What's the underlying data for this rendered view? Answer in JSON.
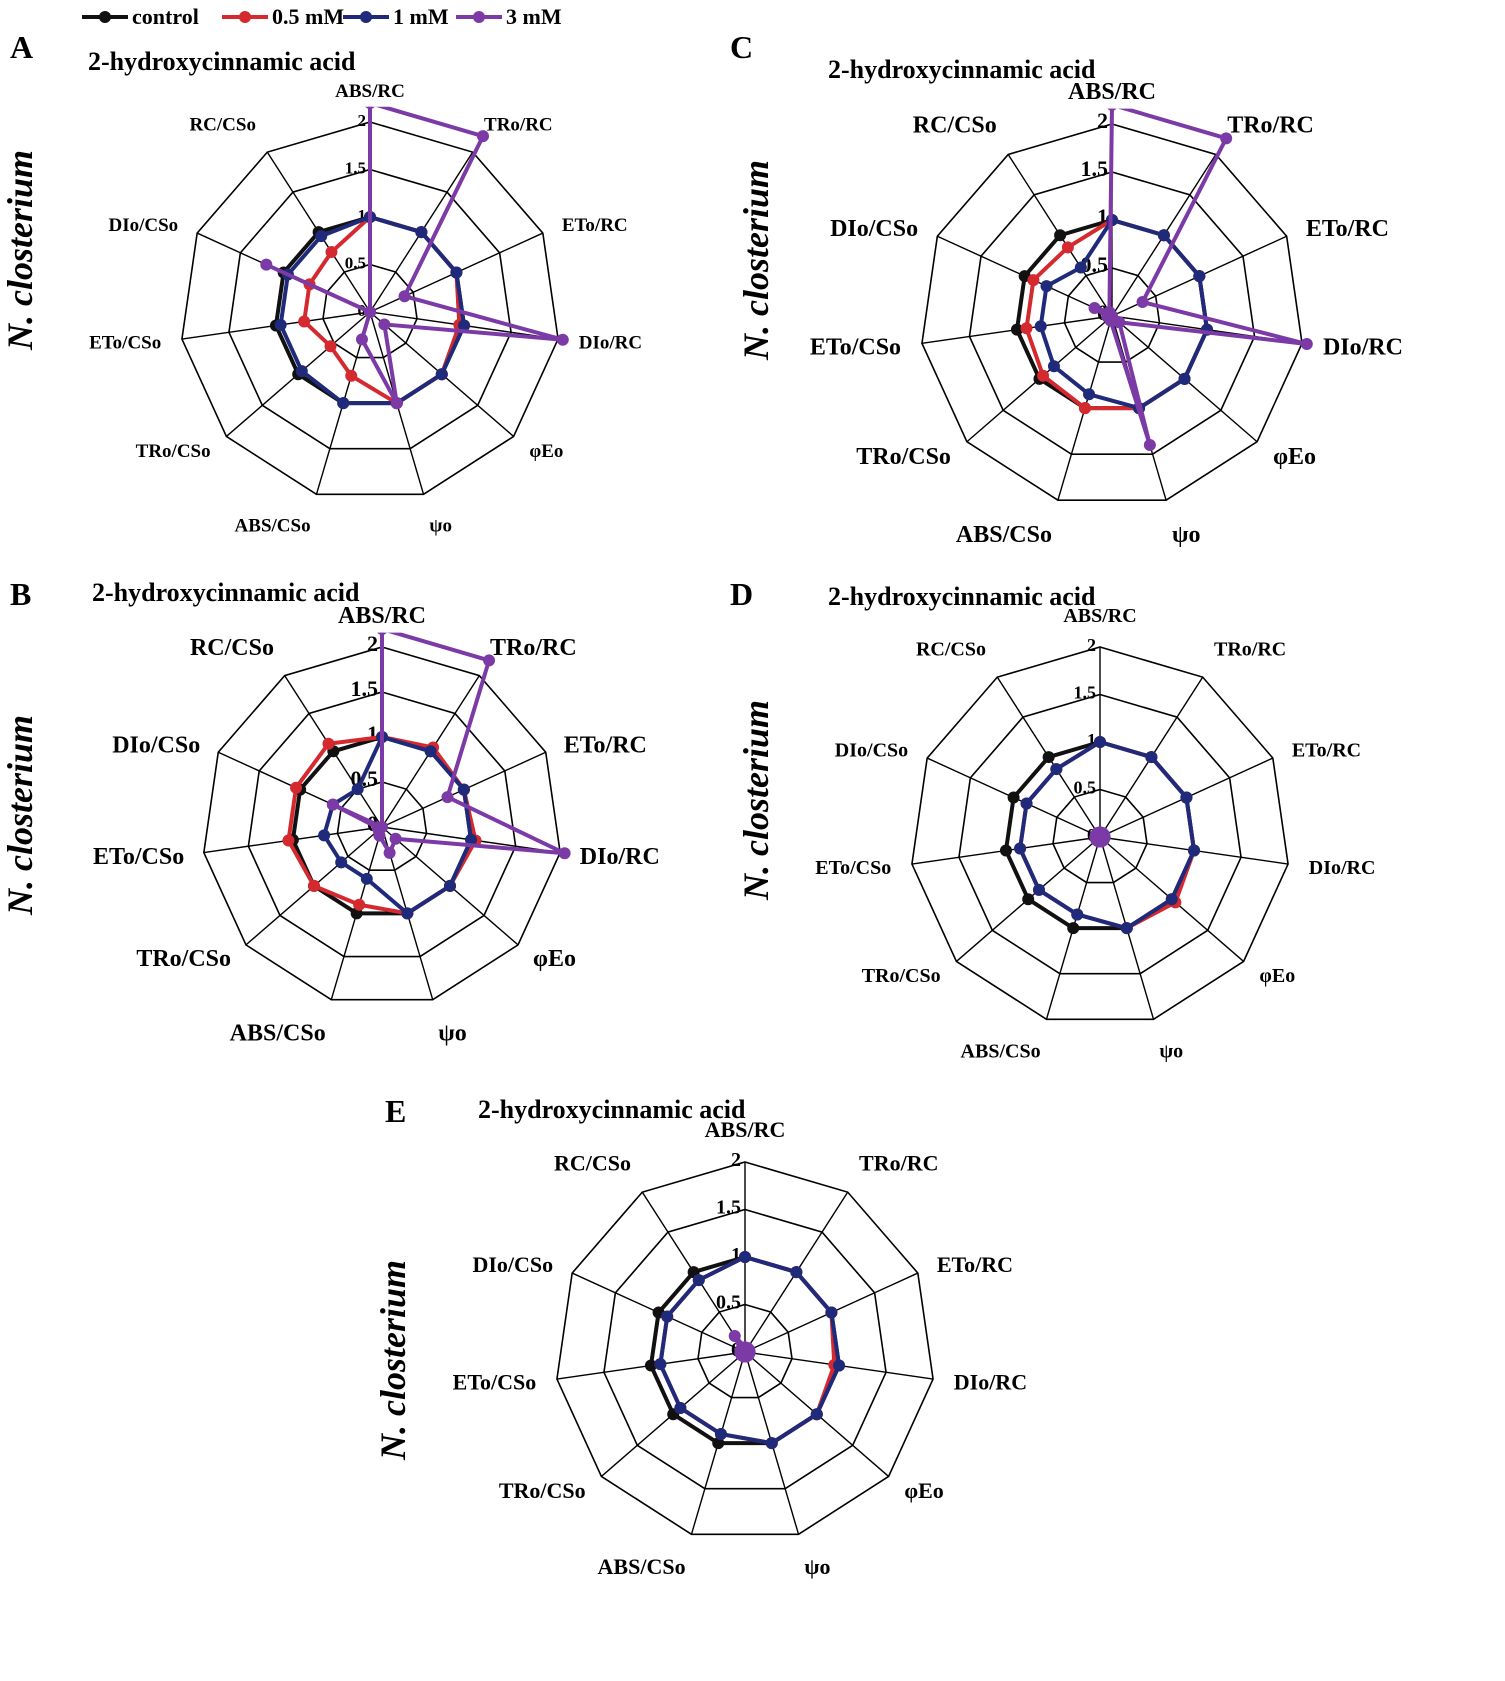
{
  "legend": [
    {
      "name": "control",
      "color": "#111111"
    },
    {
      "name": "0.5 mM",
      "color": "#d42a2f"
    },
    {
      "name": "1 mM",
      "color": "#1f2a7a"
    },
    {
      "name": "3 mM",
      "color": "#7b3aa6"
    }
  ],
  "chart_data": [
    {
      "type": "radar",
      "panel": "A",
      "title": "2-hydroxycinnamic acid",
      "ylabel": "N. closterium",
      "axes": [
        "ABS/RC",
        "TRo/RC",
        "ETo/RC",
        "DIo/RC",
        "φEo",
        "ψo",
        "ABS/CSo",
        "TRo/CSo",
        "ETo/CSo",
        "DIo/CSo",
        "RC/CSo"
      ],
      "ticks": [
        "0",
        "0.5",
        "1",
        "1.5",
        "2"
      ],
      "rmax": 2,
      "series": [
        {
          "name": "control",
          "values": [
            1,
            1,
            1,
            1,
            1,
            1,
            1,
            1,
            1,
            1,
            1
          ]
        },
        {
          "name": "0.5 mM",
          "values": [
            1,
            1,
            1,
            0.95,
            1,
            1,
            0.7,
            0.55,
            0.7,
            0.7,
            0.75
          ]
        },
        {
          "name": "1 mM",
          "values": [
            1,
            1,
            1,
            1,
            1,
            1,
            1,
            0.95,
            0.95,
            0.95,
            0.95
          ]
        },
        {
          "name": "3 mM",
          "values": [
            2.2,
            2.2,
            0.4,
            2.05,
            0.2,
            1,
            0.3,
            0,
            0,
            1.2,
            0
          ]
        }
      ]
    },
    {
      "type": "radar",
      "panel": "B",
      "title": "2-hydroxycinnamic acid",
      "ylabel": "N. closterium",
      "axes": [
        "ABS/RC",
        "TRo/RC",
        "ETo/RC",
        "DIo/RC",
        "φEo",
        "ψo",
        "ABS/CSo",
        "TRo/CSo",
        "ETo/CSo",
        "DIo/CSo",
        "RC/CSo"
      ],
      "ticks": [
        "0",
        "0.5",
        "1",
        "1.5",
        "2"
      ],
      "rmax": 2,
      "series": [
        {
          "name": "control",
          "values": [
            1,
            1,
            1,
            1,
            1,
            1,
            1,
            1,
            1,
            1,
            1
          ]
        },
        {
          "name": "0.5 mM",
          "values": [
            1,
            1.05,
            1,
            1.05,
            1,
            1,
            0.9,
            1,
            1.05,
            1.05,
            1.1
          ]
        },
        {
          "name": "1 mM",
          "values": [
            1,
            1,
            1,
            1,
            1,
            1,
            0.6,
            0.6,
            0.65,
            0.6,
            0.5
          ]
        },
        {
          "name": "3 mM",
          "values": [
            2.2,
            2.2,
            0.8,
            2.05,
            0.2,
            0.3,
            0.1,
            0.05,
            0.05,
            0.6,
            0
          ]
        }
      ]
    },
    {
      "type": "radar",
      "panel": "C",
      "title": "2-hydroxycinnamic acid",
      "ylabel": "N. closterium",
      "axes": [
        "ABS/RC",
        "TRo/RC",
        "ETo/RC",
        "DIo/RC",
        "φEo",
        "ψo",
        "ABS/CSo",
        "TRo/CSo",
        "ETo/CSo",
        "DIo/CSo",
        "RC/CSo"
      ],
      "ticks": [
        "0",
        "0.5",
        "1",
        "1.5",
        "2"
      ],
      "rmax": 2,
      "series": [
        {
          "name": "control",
          "values": [
            1,
            1,
            1,
            1,
            1,
            1,
            1,
            1,
            1,
            1,
            1
          ]
        },
        {
          "name": "0.5 mM",
          "values": [
            1,
            1,
            1,
            1,
            1,
            1,
            1,
            0.95,
            0.9,
            0.9,
            0.85
          ]
        },
        {
          "name": "1 mM",
          "values": [
            1,
            1,
            1,
            1,
            1,
            1,
            0.85,
            0.8,
            0.75,
            0.75,
            0.6
          ]
        },
        {
          "name": "3 mM",
          "values": [
            2.2,
            2.2,
            0.35,
            2.05,
            0.1,
            1.4,
            0.05,
            0,
            0.05,
            0.2,
            0.05
          ]
        }
      ]
    },
    {
      "type": "radar",
      "panel": "D",
      "title": "2-hydroxycinnamic acid",
      "ylabel": "N. closterium",
      "axes": [
        "ABS/RC",
        "TRo/RC",
        "ETo/RC",
        "DIo/RC",
        "φEo",
        "ψo",
        "ABS/CSo",
        "TRo/CSo",
        "ETo/CSo",
        "DIo/CSo",
        "RC/CSo"
      ],
      "ticks": [
        "0",
        "0.5",
        "1",
        "1.5",
        "2"
      ],
      "rmax": 2,
      "series": [
        {
          "name": "control",
          "values": [
            1,
            1,
            1,
            1,
            1,
            1,
            1,
            1,
            1,
            1,
            1
          ]
        },
        {
          "name": "0.5 mM",
          "values": [
            1,
            1,
            1,
            1,
            1.05,
            1,
            0.85,
            0.85,
            0.85,
            0.85,
            0.85
          ]
        },
        {
          "name": "1 mM",
          "values": [
            1,
            1,
            1,
            1,
            1,
            1,
            0.85,
            0.85,
            0.85,
            0.85,
            0.85
          ]
        },
        {
          "name": "3 mM",
          "values": [
            0.05,
            0.05,
            0.05,
            0.05,
            0.05,
            0.05,
            0.05,
            0.05,
            0.05,
            0.05,
            0.05
          ]
        }
      ]
    },
    {
      "type": "radar",
      "panel": "E",
      "title": "2-hydroxycinnamic acid",
      "ylabel": "N. closterium",
      "axes": [
        "ABS/RC",
        "TRo/RC",
        "ETo/RC",
        "DIo/RC",
        "φEo",
        "ψo",
        "ABS/CSo",
        "TRo/CSo",
        "ETo/CSo",
        "DIo/CSo",
        "RC/CSo"
      ],
      "ticks": [
        "0",
        "0.5",
        "1",
        "1.5",
        "2"
      ],
      "rmax": 2,
      "series": [
        {
          "name": "control",
          "values": [
            1,
            1,
            1,
            1,
            1,
            1,
            1,
            1,
            1,
            1,
            1
          ]
        },
        {
          "name": "0.5 mM",
          "values": [
            1,
            1,
            1,
            0.95,
            1,
            1,
            0.9,
            0.9,
            0.9,
            0.9,
            0.9
          ]
        },
        {
          "name": "1 mM",
          "values": [
            1,
            1,
            1,
            1,
            1,
            1,
            0.9,
            0.9,
            0.9,
            0.9,
            0.9
          ]
        },
        {
          "name": "3 mM",
          "values": [
            0.05,
            0.05,
            0.05,
            0.05,
            0.05,
            0.05,
            0.05,
            0.05,
            0.05,
            0.05,
            0.2
          ]
        }
      ]
    }
  ]
}
